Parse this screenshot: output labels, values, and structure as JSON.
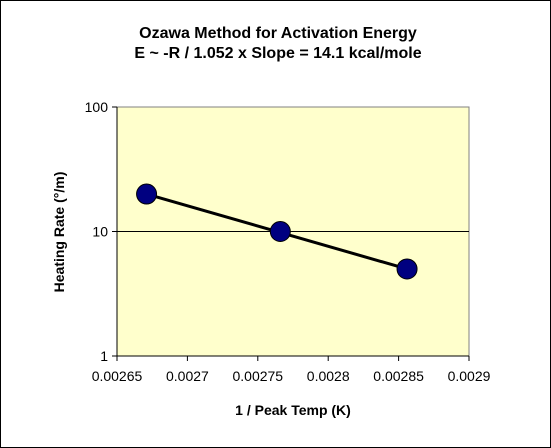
{
  "chart_data": {
    "type": "scatter",
    "title": "Ozawa Method for Activation Energy",
    "subtitle": "E ~ -R / 1.052 x Slope = 14.1 kcal/mole",
    "xlabel": "1 / Peak Temp (K)",
    "ylabel": "Heating Rate (°/m)",
    "xlim": [
      0.00265,
      0.0029
    ],
    "ylim": [
      1,
      100
    ],
    "y_scale": "log",
    "x_ticks": [
      "0.00265",
      "0.0027",
      "0.00275",
      "0.0028",
      "0.00285",
      "0.0029"
    ],
    "y_ticks": [
      "1",
      "10",
      "100"
    ],
    "grid": "horizontal major gridline at 10",
    "legend": "none",
    "series": [
      {
        "x": [
          0.002671,
          0.002766,
          0.002856
        ],
        "y": [
          20,
          10,
          5
        ],
        "marker": "circle",
        "color": "#000080"
      }
    ],
    "trendline": {
      "x": [
        0.002671,
        0.002856
      ],
      "y": [
        20,
        5
      ],
      "color": "#000000"
    },
    "colors": {
      "plot_background": "#FFFFCC",
      "marker_fill": "#000080",
      "line": "#000000"
    }
  }
}
